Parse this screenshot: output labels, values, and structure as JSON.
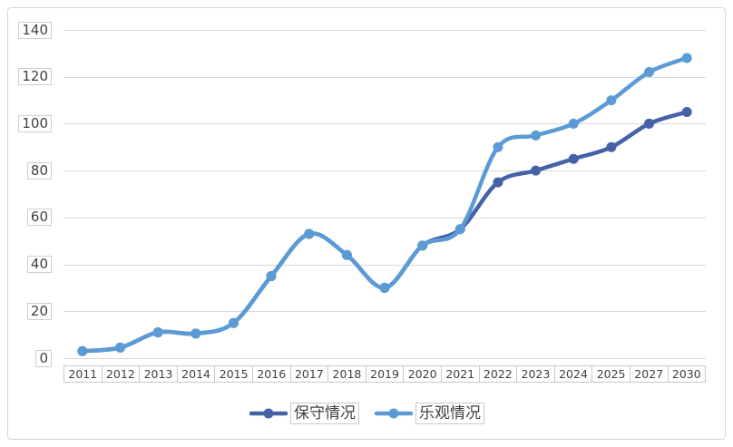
{
  "chart_data": {
    "type": "line",
    "categories": [
      "2011",
      "2012",
      "2013",
      "2014",
      "2015",
      "2016",
      "2017",
      "2018",
      "2019",
      "2020",
      "2021",
      "2022",
      "2023",
      "2024",
      "2025",
      "2027",
      "2030"
    ],
    "series": [
      {
        "name": "保守情况",
        "color": "#4562a8",
        "values": [
          3,
          4.5,
          11,
          10.5,
          15,
          35,
          53,
          44,
          30,
          48,
          55,
          75,
          80,
          85,
          90,
          100,
          105
        ]
      },
      {
        "name": "乐观情况",
        "color": "#5b9bd5",
        "values": [
          3,
          4.5,
          11,
          10.5,
          15,
          35,
          53,
          44,
          30,
          48,
          55,
          90,
          95,
          100,
          110,
          122,
          128
        ]
      }
    ],
    "ylim": [
      0,
      140
    ],
    "y_ticks": [
      0,
      20,
      40,
      60,
      80,
      100,
      120,
      140
    ],
    "grid": "horizontal",
    "smooth": true,
    "markers": "circle",
    "legend": "bottom-center"
  }
}
